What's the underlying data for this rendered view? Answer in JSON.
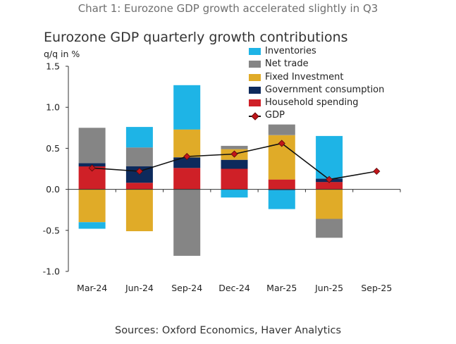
{
  "caption": "Chart 1: Eurozone GDP growth accelerated slightly in Q3",
  "source": "Sources: Oxford Economics, Haver Analytics",
  "colors": {
    "inventories": "#1eb4e6",
    "net_trade": "#858585",
    "fixed_investment": "#e0ab28",
    "government_consumption": "#0d2a5c",
    "household_spending": "#cf2027",
    "gdp_marker": "#c0151a",
    "gdp_line": "#111111"
  },
  "chart_data": {
    "type": "bar",
    "stacked": true,
    "title": "Eurozone GDP quarterly growth contributions",
    "ylabel": "q/q in %",
    "xlabel": "",
    "ylim": [
      -1.0,
      1.5
    ],
    "yticks": [
      "1.5",
      "1.0",
      "0.5",
      "0.0",
      "-0.5",
      "-1.0"
    ],
    "ytick_values": [
      1.5,
      1.0,
      0.5,
      0.0,
      -0.5,
      -1.0
    ],
    "categories": [
      "Mar-24",
      "Jun-24",
      "Sep-24",
      "Dec-24",
      "Mar-25",
      "Jun-25",
      "Sep-25"
    ],
    "series": [
      {
        "name": "Household spending",
        "key": "household_spending",
        "values": [
          0.28,
          0.08,
          0.26,
          0.25,
          0.12,
          0.09,
          null
        ]
      },
      {
        "name": "Government consumption",
        "key": "government_consumption",
        "values": [
          0.04,
          0.2,
          0.13,
          0.11,
          -0.01,
          0.04,
          null
        ]
      },
      {
        "name": "Fixed Investment",
        "key": "fixed_investment",
        "values": [
          -0.4,
          -0.51,
          0.34,
          0.13,
          0.54,
          -0.36,
          null
        ]
      },
      {
        "name": "Net trade",
        "key": "net_trade",
        "values": [
          0.43,
          0.23,
          -0.81,
          0.04,
          0.13,
          -0.23,
          null
        ]
      },
      {
        "name": "Inventories",
        "key": "inventories",
        "values": [
          -0.08,
          0.25,
          0.54,
          -0.1,
          -0.23,
          0.52,
          null
        ]
      }
    ],
    "gdp": {
      "name": "GDP",
      "values": [
        0.26,
        0.22,
        0.4,
        0.43,
        0.56,
        0.12,
        0.22
      ]
    },
    "legend": [
      "Inventories",
      "Net trade",
      "Fixed Investment",
      "Government consumption",
      "Household spending",
      "GDP"
    ],
    "legend_position": "top-right"
  }
}
